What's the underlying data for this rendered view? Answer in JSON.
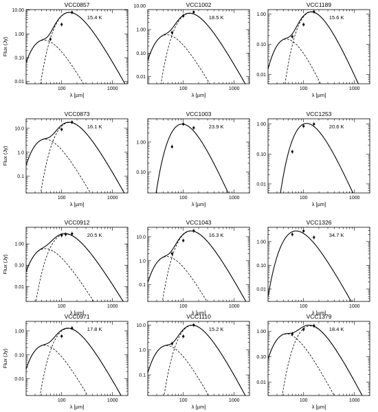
{
  "figure": {
    "xlabel": "λ [µm]",
    "ylabel": "Flux (Jy)"
  },
  "chart_data": [
    {
      "type": "line",
      "title": "VCC0857",
      "temperature_label": "15.4 K",
      "yticks": [
        {
          "v": 10,
          "label": "10.00"
        },
        {
          "v": 1,
          "label": "1.00"
        },
        {
          "v": 0.1,
          "label": "0.10"
        },
        {
          "v": 0.01,
          "label": "0.01"
        }
      ],
      "ylim": [
        0.008,
        10.5
      ],
      "peak_total": [
        180,
        8.2
      ],
      "warm": {
        "peak_lam": 57,
        "peak_flux": 0.55
      },
      "points": [
        [
          60,
          0.6
        ],
        [
          100,
          2.5
        ],
        [
          160,
          8.0
        ]
      ]
    },
    {
      "type": "line",
      "title": "VCC1002",
      "temperature_label": "18.5 K",
      "yticks": [
        {
          "v": 10,
          "label": "10.00"
        },
        {
          "v": 1,
          "label": "1.00"
        },
        {
          "v": 0.1,
          "label": "0.10"
        },
        {
          "v": 0.01,
          "label": "0.01"
        }
      ],
      "ylim": [
        0.005,
        7
      ],
      "peak_total": [
        170,
        5.0
      ],
      "warm": {
        "peak_lam": 60,
        "peak_flux": 0.6
      },
      "points": [
        [
          60,
          0.75
        ],
        [
          100,
          3.8
        ],
        [
          160,
          5.5
        ]
      ]
    },
    {
      "type": "line",
      "title": "VCC1189",
      "temperature_label": "15.6 K",
      "yticks": [
        {
          "v": 1,
          "label": "1.00"
        },
        {
          "v": 0.1,
          "label": "0.10"
        },
        {
          "v": 0.01,
          "label": "0.01"
        }
      ],
      "ylim": [
        0.005,
        1.4
      ],
      "peak_total": [
        180,
        1.2
      ],
      "warm": {
        "peak_lam": 58,
        "peak_flux": 0.15
      },
      "points": [
        [
          60,
          0.18
        ],
        [
          100,
          0.45
        ],
        [
          160,
          1.2
        ]
      ]
    },
    {
      "type": "line",
      "title": "VCC0873",
      "temperature_label": "16.1 K",
      "yticks": [
        {
          "v": 10,
          "label": "10.0"
        },
        {
          "v": 1,
          "label": "1.0"
        },
        {
          "v": 0.1,
          "label": "0.1"
        }
      ],
      "ylim": [
        0.02,
        25
      ],
      "peak_total": [
        180,
        18
      ],
      "warm": {
        "peak_lam": 60,
        "peak_flux": 3.5
      },
      "points": [
        [
          100,
          9.0
        ],
        [
          160,
          18.0
        ]
      ]
    },
    {
      "type": "line",
      "title": "VCC1003",
      "temperature_label": "23.9 K",
      "yticks": [
        {
          "v": 1,
          "label": "1.00"
        },
        {
          "v": 0.1,
          "label": "0.10"
        }
      ],
      "ylim": [
        0.02,
        6
      ],
      "peak_total": [
        120,
        4.0
      ],
      "warm": null,
      "points": [
        [
          60,
          0.7
        ],
        [
          100,
          4.0
        ],
        [
          160,
          3.0
        ]
      ]
    },
    {
      "type": "line",
      "title": "VCC1253",
      "temperature_label": "20.6 K",
      "yticks": [
        {
          "v": 1,
          "label": "1.00"
        },
        {
          "v": 0.1,
          "label": "0.10"
        },
        {
          "v": 0.01,
          "label": "0.01"
        }
      ],
      "ylim": [
        0.005,
        1.5
      ],
      "peak_total": [
        145,
        1.05
      ],
      "warm": null,
      "points": [
        [
          60,
          0.12
        ],
        [
          100,
          0.85
        ],
        [
          160,
          1.0
        ]
      ]
    },
    {
      "type": "line",
      "title": "VCC0912",
      "temperature_label": "20.5 K",
      "yticks": [
        {
          "v": 1,
          "label": "1.00"
        },
        {
          "v": 0.1,
          "label": "0.10"
        },
        {
          "v": 0.01,
          "label": "0.01"
        }
      ],
      "ylim": [
        0.002,
        6
      ],
      "peak_total": [
        150,
        3.0
      ],
      "warm": {
        "peak_lam": 60,
        "peak_flux": 0.6
      },
      "points": [
        [
          100,
          2.5
        ],
        [
          120,
          2.8
        ],
        [
          160,
          3.0
        ]
      ]
    },
    {
      "type": "line",
      "title": "VCC1043",
      "temperature_label": "16.3 K",
      "yticks": [
        {
          "v": 10,
          "label": "10.0"
        },
        {
          "v": 1,
          "label": "1.0"
        },
        {
          "v": 0.1,
          "label": "0.1"
        }
      ],
      "ylim": [
        0.02,
        25
      ],
      "peak_total": [
        180,
        18
      ],
      "warm": {
        "peak_lam": 60,
        "peak_flux": 1.5
      },
      "points": [
        [
          60,
          2.0
        ],
        [
          100,
          7.0
        ],
        [
          160,
          18.0
        ]
      ]
    },
    {
      "type": "line",
      "title": "VCC1326",
      "temperature_label": "34.7 K",
      "yticks": [
        {
          "v": 1,
          "label": "1.00"
        },
        {
          "v": 0.1,
          "label": "0.10"
        },
        {
          "v": 0.01,
          "label": "0.01"
        }
      ],
      "ylim": [
        0.003,
        4
      ],
      "peak_total": [
        90,
        2.8
      ],
      "warm": null,
      "points": [
        [
          60,
          2.0
        ],
        [
          100,
          2.8
        ],
        [
          160,
          1.5
        ]
      ]
    },
    {
      "type": "line",
      "title": "VCC0971",
      "temperature_label": "17.8 K",
      "yticks": [
        {
          "v": 1,
          "label": "1.00"
        },
        {
          "v": 0.1,
          "label": "0.10"
        },
        {
          "v": 0.01,
          "label": "0.01"
        }
      ],
      "ylim": [
        0.002,
        2.5
      ],
      "peak_total": [
        170,
        1.3
      ],
      "warm": {
        "peak_lam": 58,
        "peak_flux": 0.25
      },
      "points": [
        [
          100,
          0.6
        ],
        [
          160,
          1.3
        ]
      ]
    },
    {
      "type": "line",
      "title": "VCC1110",
      "temperature_label": "15.2 K",
      "yticks": [
        {
          "v": 10,
          "label": "10.0"
        },
        {
          "v": 1,
          "label": "1.0"
        },
        {
          "v": 0.1,
          "label": "0.1"
        }
      ],
      "ylim": [
        0.015,
        14
      ],
      "peak_total": [
        190,
        10
      ],
      "warm": {
        "peak_lam": 60,
        "peak_flux": 1.5
      },
      "points": [
        [
          60,
          1.8
        ],
        [
          100,
          3.5
        ],
        [
          160,
          10.0
        ]
      ]
    },
    {
      "type": "line",
      "title": "VCC1379",
      "temperature_label": "18.4 K",
      "yticks": [
        {
          "v": 1,
          "label": "1.00"
        },
        {
          "v": 0.1,
          "label": "0.10"
        },
        {
          "v": 0.01,
          "label": "0.01"
        }
      ],
      "ylim": [
        0.003,
        2.5
      ],
      "peak_total": [
        170,
        1.7
      ],
      "warm": {
        "peak_lam": 58,
        "peak_flux": 0.8
      },
      "points": [
        [
          60,
          0.8
        ],
        [
          100,
          1.2
        ],
        [
          160,
          1.7
        ]
      ]
    }
  ],
  "xaxis": {
    "scale": "log",
    "xlim": [
      20,
      2000
    ],
    "ticks": [
      {
        "v": 100,
        "label": "100"
      },
      {
        "v": 1000,
        "label": "1000"
      }
    ]
  }
}
